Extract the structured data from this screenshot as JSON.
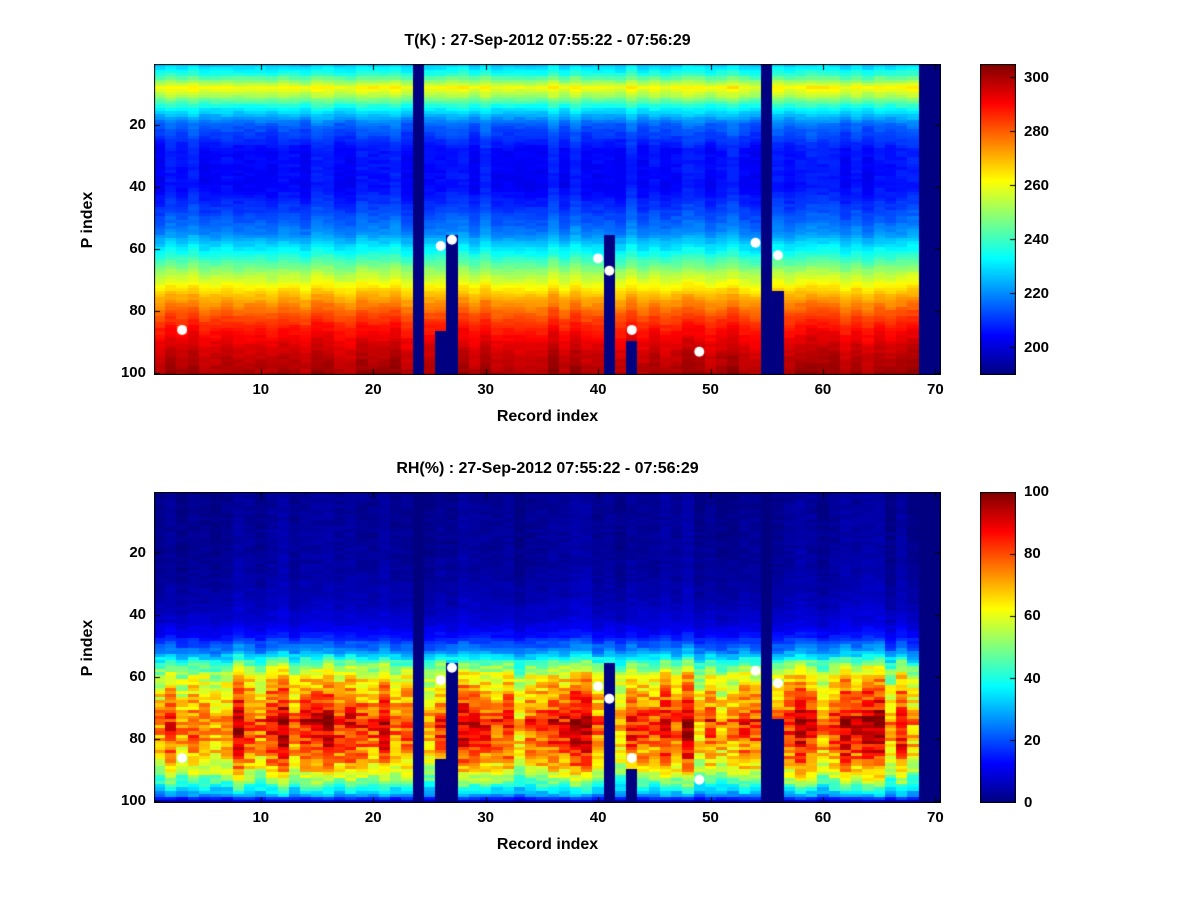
{
  "figure": {
    "background_color": "#ffffff",
    "text_color": "#000000"
  },
  "chart_data": [
    {
      "type": "heatmap",
      "title": "T(K) : 27-Sep-2012 07:55:22 - 07:56:29",
      "xlabel": "Record index",
      "ylabel": "P index",
      "colormap": "jet",
      "n_records": 70,
      "n_levels": 100,
      "y_axis_reversed": true,
      "x_ticks": [
        10,
        20,
        30,
        40,
        50,
        60,
        70
      ],
      "y_ticks": [
        20,
        40,
        60,
        80,
        100
      ],
      "color_limits": [
        190,
        305
      ],
      "colorbar_ticks": [
        200,
        220,
        240,
        260,
        280,
        300
      ],
      "vertical_profile": {
        "p_index": [
          1,
          4,
          8,
          11,
          15,
          20,
          28,
          40,
          48,
          55,
          60,
          65,
          70,
          75,
          80,
          85,
          90,
          95,
          100
        ],
        "value": [
          228,
          238,
          262,
          252,
          232,
          216,
          206,
          205,
          212,
          220,
          232,
          245,
          258,
          270,
          280,
          288,
          294,
          298,
          301
        ]
      },
      "noise": {
        "column": 2.5,
        "cell": 1.6,
        "scale_by_value": false
      },
      "missing_columns": [
        {
          "record": 24,
          "from_p": 1
        },
        {
          "record": 26,
          "from_p": 87
        },
        {
          "record": 27,
          "from_p": 56
        },
        {
          "record": 41,
          "from_p": 56
        },
        {
          "record": 43,
          "from_p": 90
        },
        {
          "record": 55,
          "from_p": 1
        },
        {
          "record": 56,
          "from_p": 74
        },
        {
          "record": 69,
          "from_p": 1
        },
        {
          "record": 70,
          "from_p": 1
        }
      ],
      "markers": {
        "shape": "circle",
        "color": "#ffffff",
        "points": [
          [
            3,
            86
          ],
          [
            26,
            59
          ],
          [
            27,
            57
          ],
          [
            40,
            63
          ],
          [
            41,
            67
          ],
          [
            43,
            86
          ],
          [
            49,
            93
          ],
          [
            54,
            58
          ],
          [
            56,
            62
          ]
        ]
      }
    },
    {
      "type": "heatmap",
      "title": "RH(%) : 27-Sep-2012 07:55:22 - 07:56:29",
      "xlabel": "Record index",
      "ylabel": "P index",
      "colormap": "jet",
      "n_records": 70,
      "n_levels": 100,
      "y_axis_reversed": true,
      "x_ticks": [
        10,
        20,
        30,
        40,
        50,
        60,
        70
      ],
      "y_ticks": [
        20,
        40,
        60,
        80,
        100
      ],
      "color_limits": [
        0,
        100
      ],
      "colorbar_ticks": [
        0,
        20,
        40,
        60,
        80,
        100
      ],
      "vertical_profile": {
        "p_index": [
          1,
          25,
          35,
          42,
          47,
          52,
          56,
          60,
          65,
          70,
          74,
          78,
          82,
          86,
          90,
          94,
          98,
          100
        ],
        "value": [
          2,
          3,
          5,
          8,
          14,
          28,
          48,
          62,
          70,
          76,
          86,
          82,
          78,
          72,
          62,
          48,
          28,
          4
        ]
      },
      "noise": {
        "column": 12,
        "cell": 9,
        "scale_by_value": true
      },
      "missing_columns": [
        {
          "record": 24,
          "from_p": 1
        },
        {
          "record": 26,
          "from_p": 87
        },
        {
          "record": 27,
          "from_p": 56
        },
        {
          "record": 41,
          "from_p": 56
        },
        {
          "record": 43,
          "from_p": 90
        },
        {
          "record": 55,
          "from_p": 1
        },
        {
          "record": 56,
          "from_p": 74
        },
        {
          "record": 69,
          "from_p": 1
        },
        {
          "record": 70,
          "from_p": 1
        }
      ],
      "markers": {
        "shape": "circle",
        "color": "#ffffff",
        "points": [
          [
            3,
            86
          ],
          [
            26,
            61
          ],
          [
            27,
            57
          ],
          [
            40,
            63
          ],
          [
            41,
            67
          ],
          [
            43,
            86
          ],
          [
            49,
            93
          ],
          [
            54,
            58
          ],
          [
            56,
            62
          ]
        ]
      }
    }
  ]
}
